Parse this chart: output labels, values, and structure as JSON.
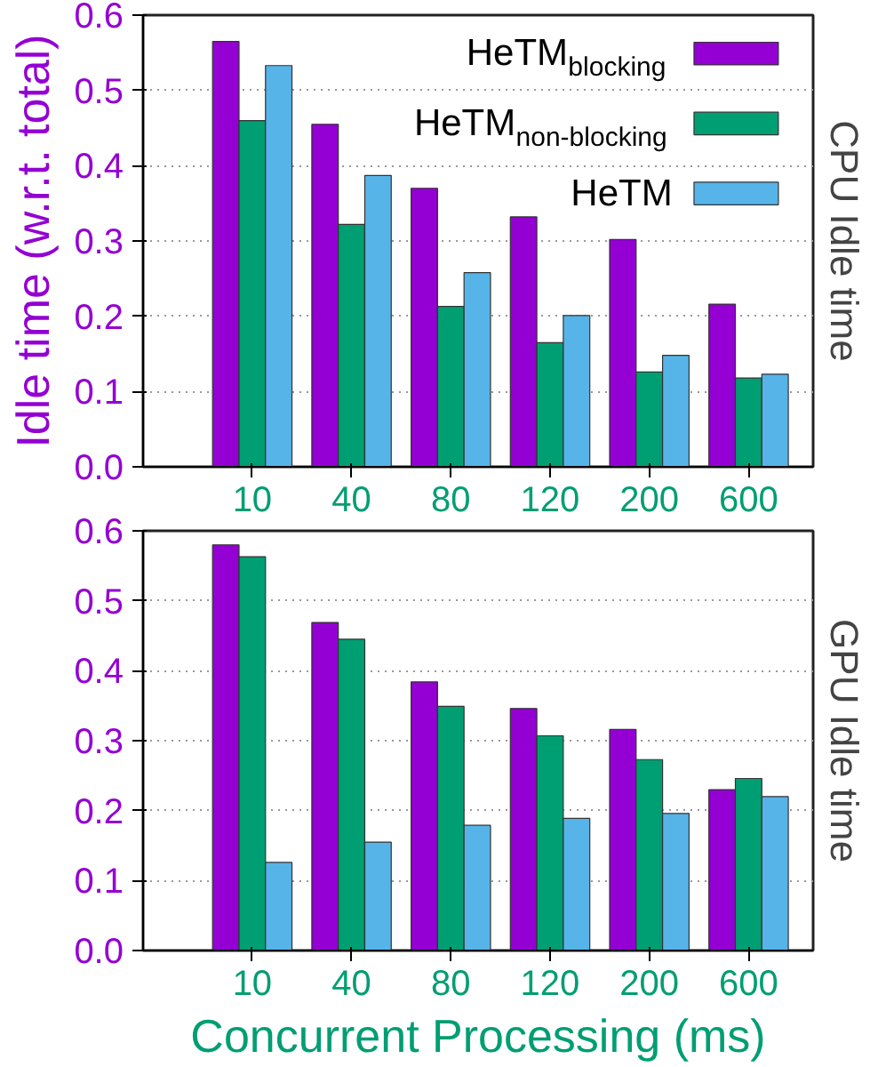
{
  "chart_data": [
    {
      "type": "bar",
      "title": "CPU Idle time",
      "ylabel": "Idle time (w.r.t. total)",
      "categories": [
        "10",
        "40",
        "80",
        "120",
        "200",
        "600"
      ],
      "series": [
        {
          "name": "HeTM$_{blocking}$",
          "color": "#9400d3",
          "values": [
            0.565,
            0.455,
            0.37,
            0.332,
            0.302,
            0.216
          ]
        },
        {
          "name": "HeTM$_{non-blocking}$",
          "color": "#009e73",
          "values": [
            0.46,
            0.322,
            0.213,
            0.165,
            0.126,
            0.118
          ]
        },
        {
          "name": "HeTM",
          "color": "#56b4e9",
          "values": [
            0.533,
            0.387,
            0.258,
            0.201,
            0.148,
            0.123
          ]
        }
      ],
      "ylim": [
        0,
        0.6
      ],
      "yticks": [
        {
          "value": 0,
          "label": "0.0"
        },
        0.1,
        0.2,
        0.3,
        0.4,
        0.5,
        0.6
      ],
      "grid": "y",
      "legend": "top right"
    },
    {
      "type": "bar",
      "title": "GPU Idle time",
      "xlabel": "Concurrent Processing (ms)",
      "categories": [
        "10",
        "40",
        "80",
        "120",
        "200",
        "600"
      ],
      "series": [
        {
          "color": "#9400d3",
          "values": [
            0.58,
            0.469,
            0.384,
            0.346,
            0.316,
            0.23
          ]
        },
        {
          "color": "#009e73",
          "values": [
            0.563,
            0.445,
            0.349,
            0.307,
            0.273,
            0.246
          ]
        },
        {
          "color": "#56b4e9",
          "values": [
            0.126,
            0.155,
            0.179,
            0.189,
            0.196,
            0.22
          ]
        }
      ],
      "ylim": [
        0,
        0.6
      ],
      "yticks": [
        {
          "value": 0,
          "label": "0.0"
        },
        0.1,
        0.2,
        0.3,
        0.4,
        0.5,
        0.6
      ],
      "grid": "y"
    }
  ]
}
